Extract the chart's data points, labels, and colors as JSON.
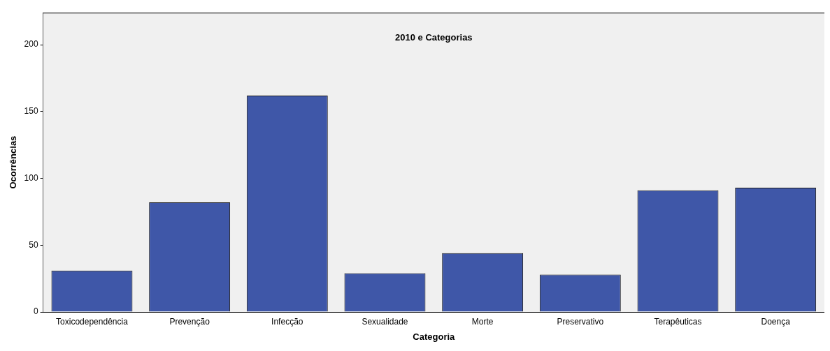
{
  "chart_data": {
    "type": "bar",
    "title": "2010 e Categorias",
    "xlabel": "Categoria",
    "ylabel": "Ocorrências",
    "categories": [
      "Toxicodependência",
      "Prevenção",
      "Infecção",
      "Sexualidade",
      "Morte",
      "Preservativo",
      "Terapêuticas",
      "Doença"
    ],
    "values": [
      31,
      82,
      162,
      29,
      44,
      28,
      91,
      93
    ],
    "color": "#3f57a8",
    "ylim": [
      0,
      224
    ],
    "yticks": [
      0,
      50,
      100,
      150,
      200
    ],
    "grid": false,
    "legend": false
  }
}
